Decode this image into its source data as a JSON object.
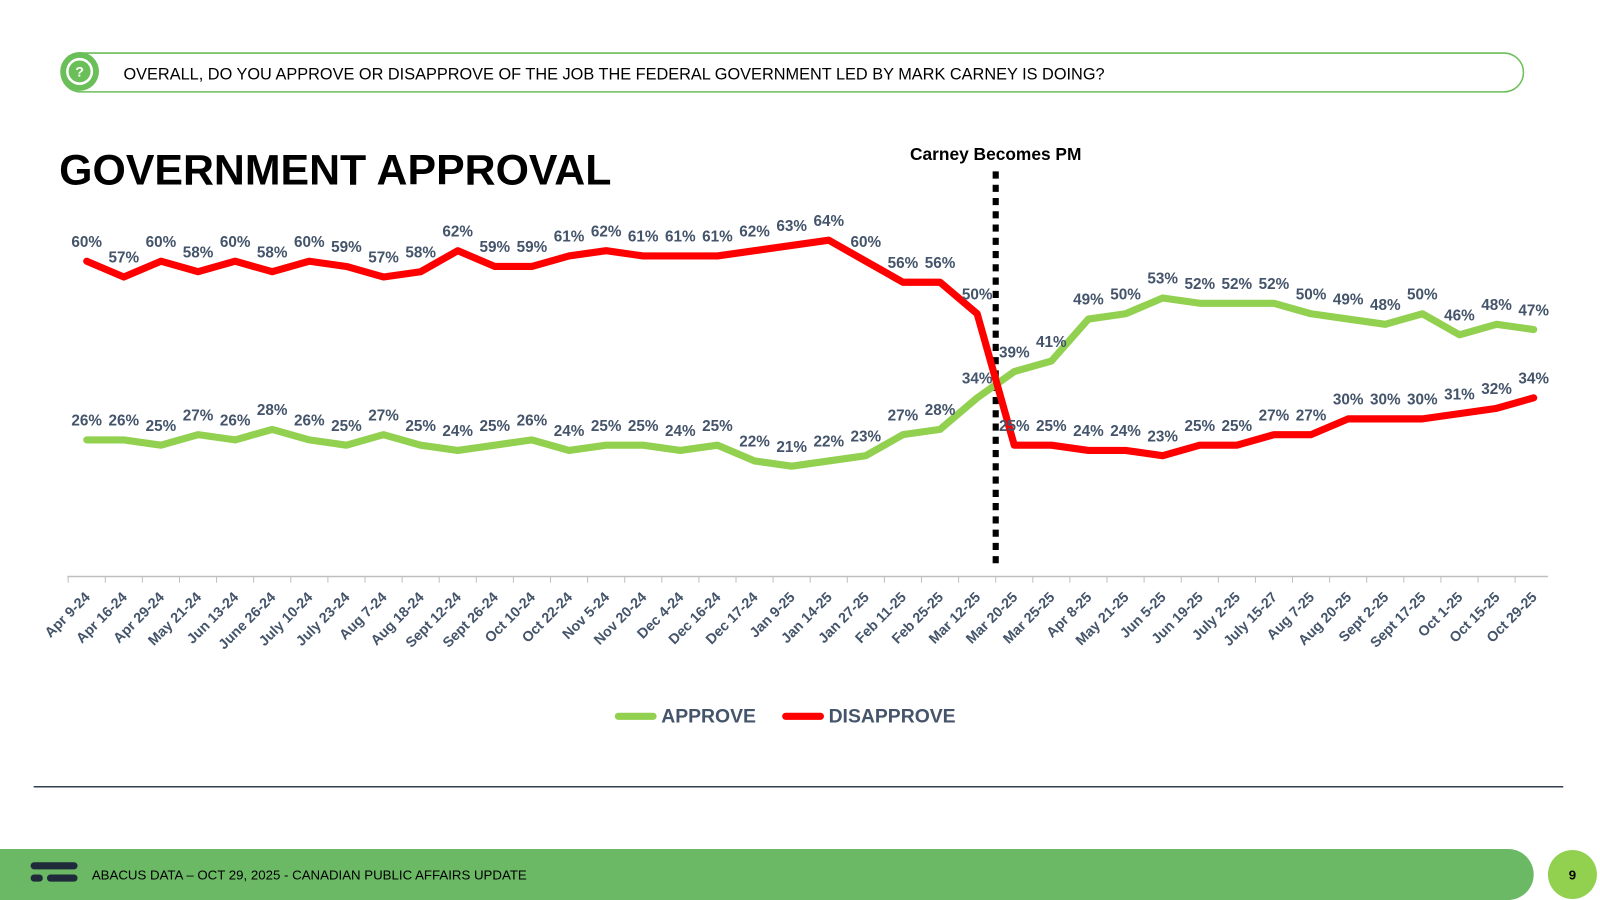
{
  "header": {
    "question": "OVERALL, DO YOU APPROVE OR DISAPPROVE OF THE JOB THE FEDERAL GOVERNMENT LED BY MARK CARNEY IS DOING?"
  },
  "chart_data": {
    "type": "line",
    "title": "GOVERNMENT APPROVAL",
    "annotation": "Carney Becomes PM",
    "categories": [
      "Apr 9-24",
      "Apr 16-24",
      "Apr 29-24",
      "May 21-24",
      "Jun 13-24",
      "June 26-24",
      "July 10-24",
      "July 23-24",
      "Aug 7-24",
      "Aug 18-24",
      "Sept 12-24",
      "Sept 26-24",
      "Oct 10-24",
      "Oct 22-24",
      "Nov 5-24",
      "Nov 20-24",
      "Dec 4-24",
      "Dec 16-24",
      "Dec 17-24",
      "Jan 9-25",
      "Jan 14-25",
      "Jan 27-25",
      "Feb 11-25",
      "Feb 25-25",
      "Mar 12-25",
      "Mar 20-25",
      "Mar 25-25",
      "Apr 8-25",
      "May 21-25",
      "Jun 5-25",
      "Jun 19-25",
      "July 2-25",
      "July 15-27",
      "Aug 7-25",
      "Aug 20-25",
      "Sept 2-25",
      "Sept 17-25",
      "Oct 1-25",
      "Oct 15-25",
      "Oct 29-25"
    ],
    "series": [
      {
        "name": "APPROVE",
        "color": "#92d050",
        "values": [
          26,
          26,
          25,
          27,
          26,
          28,
          26,
          25,
          27,
          25,
          24,
          25,
          26,
          24,
          25,
          25,
          24,
          25,
          22,
          21,
          22,
          23,
          27,
          28,
          34,
          39,
          41,
          49,
          50,
          53,
          52,
          52,
          52,
          50,
          49,
          48,
          50,
          46,
          48,
          47
        ],
        "value_labels": [
          "26%",
          "26%",
          "25%",
          "27%",
          "26%",
          "28%",
          "26%",
          "25%",
          "27%",
          "25%",
          "24%",
          "25%",
          "26%",
          "24%",
          "25%",
          "25%",
          "24%",
          "25%",
          "22%",
          "21%",
          "22%",
          "23%",
          "27%",
          "28%",
          "34%",
          "39%",
          "41%",
          "49%",
          "50%",
          "53%",
          "52%",
          "52%",
          "52%",
          "50%",
          "49%",
          "48%",
          "50%",
          "46%",
          "48%",
          "47%"
        ]
      },
      {
        "name": "DISAPPROVE",
        "color": "#ff0000",
        "values": [
          60,
          57,
          60,
          58,
          60,
          58,
          60,
          59,
          57,
          58,
          62,
          59,
          59,
          61,
          62,
          61,
          61,
          61,
          62,
          63,
          64,
          60,
          56,
          56,
          50,
          25,
          25,
          24,
          24,
          23,
          25,
          25,
          27,
          27,
          30,
          30,
          30,
          31,
          32,
          34
        ],
        "value_labels": [
          "60%",
          "57%",
          "60%",
          "58%",
          "60%",
          "58%",
          "60%",
          "59%",
          "57%",
          "58%",
          "62%",
          "59%",
          "59%",
          "61%",
          "62%",
          "61%",
          "61%",
          "61%",
          "62%",
          "63%",
          "64%",
          "60%",
          "56%",
          "56%",
          "50%",
          "25%",
          "25%",
          "24%",
          "24%",
          "23%",
          "25%",
          "25%",
          "27%",
          "27%",
          "30%",
          "30%",
          "30%",
          "31%",
          "32%",
          "34%"
        ]
      }
    ]
  },
  "footer": {
    "text": "ABACUS DATA – OCT 29, 2025 - CANADIAN PUBLIC AFFAIRS UPDATE",
    "page": 9
  }
}
